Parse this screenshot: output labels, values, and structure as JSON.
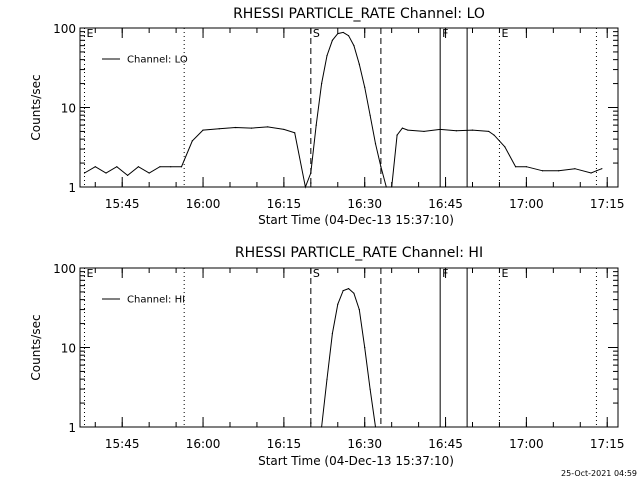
{
  "chart_data": [
    {
      "type": "line",
      "title": "RHESSI PARTICLE_RATE Channel: LO",
      "xlabel": "Start Time (04-Dec-13 15:37:10)",
      "ylabel": "Counts/sec",
      "y_scale": "log",
      "ylim": [
        1,
        100
      ],
      "xlim": [
        "15:37:10",
        "17:17:00"
      ],
      "x_ticks": [
        "15:45",
        "16:00",
        "16:15",
        "16:30",
        "16:45",
        "17:00",
        "17:15"
      ],
      "y_ticks": [
        "1",
        "10",
        "100"
      ],
      "legend": {
        "entries": [
          "Channel: LO"
        ],
        "position": "top-left"
      },
      "series": [
        {
          "x": [
            "15:38",
            "15:40",
            "15:42",
            "15:44",
            "15:46",
            "15:48",
            "15:50",
            "15:52",
            "15:54",
            "15:56",
            "15:58",
            "16:00",
            "16:03",
            "16:06",
            "16:09",
            "16:12",
            "16:15",
            "16:17",
            "16:19",
            "16:20",
            "16:21",
            "16:22",
            "16:23",
            "16:24",
            "16:25",
            "16:26",
            "16:27",
            "16:28",
            "16:29",
            "16:30",
            "16:31",
            "16:32",
            "16:33",
            "16:34",
            "16:35",
            "16:36",
            "16:37",
            "16:38",
            "16:41",
            "16:44",
            "16:47",
            "16:50",
            "16:53",
            "16:54",
            "16:56",
            "16:58",
            "17:00",
            "17:03",
            "17:06",
            "17:09",
            "17:12",
            "17:13",
            "17:14"
          ],
          "y": [
            1.5,
            1.8,
            1.5,
            1.8,
            1.4,
            1.8,
            1.5,
            1.8,
            1.8,
            1.8,
            3.8,
            5.2,
            5.4,
            5.6,
            5.5,
            5.7,
            5.3,
            4.8,
            1.0,
            1.5,
            6.0,
            20,
            45,
            70,
            85,
            88,
            80,
            60,
            35,
            18,
            8,
            3.5,
            1.8,
            1.0,
            1.0,
            4.5,
            5.5,
            5.2,
            5.0,
            5.3,
            5.1,
            5.2,
            5.0,
            4.5,
            3.2,
            1.8,
            1.8,
            1.6,
            1.6,
            1.7,
            1.5,
            1.6,
            1.7
          ]
        }
      ],
      "markers": [
        {
          "x": "15:38",
          "label": "E",
          "style": "dotted"
        },
        {
          "x": "15:56:30",
          "label": "",
          "style": "dotted"
        },
        {
          "x": "16:20",
          "label": "S",
          "style": "dashed"
        },
        {
          "x": "16:33",
          "label": "",
          "style": "dashed"
        },
        {
          "x": "16:44",
          "label": "F",
          "style": "solid"
        },
        {
          "x": "16:49",
          "label": "",
          "style": "solid"
        },
        {
          "x": "16:55",
          "label": "E",
          "style": "dotted"
        },
        {
          "x": "17:13",
          "label": "",
          "style": "dotted"
        }
      ]
    },
    {
      "type": "line",
      "title": "RHESSI PARTICLE_RATE Channel: HI",
      "xlabel": "Start Time (04-Dec-13 15:37:10)",
      "ylabel": "Counts/sec",
      "y_scale": "log",
      "ylim": [
        1,
        100
      ],
      "xlim": [
        "15:37:10",
        "17:17:00"
      ],
      "x_ticks": [
        "15:45",
        "16:00",
        "16:15",
        "16:30",
        "16:45",
        "17:00",
        "17:15"
      ],
      "y_ticks": [
        "1",
        "10",
        "100"
      ],
      "legend": {
        "entries": [
          "Channel: HI"
        ],
        "position": "top-left"
      },
      "series": [
        {
          "x": [
            "16:22",
            "16:23",
            "16:24",
            "16:25",
            "16:26",
            "16:27",
            "16:28",
            "16:29",
            "16:30",
            "16:31",
            "16:32"
          ],
          "y": [
            1.0,
            4,
            15,
            35,
            52,
            55,
            48,
            30,
            10,
            3,
            1.0
          ]
        }
      ],
      "markers": [
        {
          "x": "15:38",
          "label": "E",
          "style": "dotted"
        },
        {
          "x": "15:56:30",
          "label": "",
          "style": "dotted"
        },
        {
          "x": "16:20",
          "label": "S",
          "style": "dashed"
        },
        {
          "x": "16:33",
          "label": "",
          "style": "dashed"
        },
        {
          "x": "16:44",
          "label": "F",
          "style": "solid"
        },
        {
          "x": "16:49",
          "label": "",
          "style": "solid"
        },
        {
          "x": "16:55",
          "label": "E",
          "style": "dotted"
        },
        {
          "x": "17:13",
          "label": "",
          "style": "dotted"
        }
      ]
    }
  ],
  "footer": {
    "timestamp": "25-Oct-2021 04:59"
  }
}
